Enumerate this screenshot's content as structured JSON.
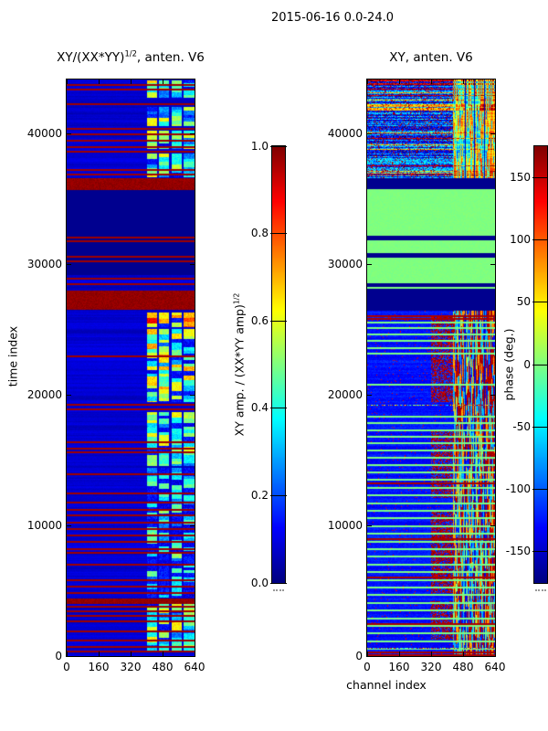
{
  "figure": {
    "title": "2015-06-16 0.0-24.0"
  },
  "colors": {
    "background": "#ffffff",
    "frame": "#000000",
    "text": "#000000",
    "flag_red": "#800000",
    "deep_blue": "#000080",
    "zero_phase_green": "#80ff80"
  },
  "chart_data": [
    {
      "type": "heatmap",
      "title_prefix": "XY/(XX*YY)",
      "title_sup": "1/2",
      "title_suffix": ", anten. V6",
      "xlabel": "",
      "ylabel": "time index",
      "xlim": [
        0,
        640
      ],
      "ylim": [
        0,
        44200
      ],
      "x_tick_labels": [
        "0",
        "160",
        "320",
        "480",
        "640"
      ],
      "y_tick_labels": [
        "0",
        "10000",
        "20000",
        "30000",
        "40000"
      ],
      "colormap": "jet",
      "colorbar": {
        "label_prefix": "XY amp. / (XX*YY amp)",
        "label_sup": "1/2",
        "tick_labels": [
          "0.0",
          "0.2",
          "0.4",
          "0.6",
          "0.8",
          "1.0"
        ],
        "vmin": 0,
        "vmax": 1
      },
      "features": {
        "background_level": 0.07,
        "quiet_navy_bands_time": [
          [
            29300,
            35800
          ]
        ],
        "flagged_red_bands_time": [
          [
            35800,
            36600
          ],
          [
            26600,
            28050
          ],
          [
            4050,
            4420
          ]
        ],
        "flagged_red_rows_time": [
          43850,
          43500,
          42350,
          40500,
          40050,
          39550,
          39100,
          38750,
          37350,
          37000,
          32150,
          31850,
          30700,
          30350,
          29000,
          28600,
          23050,
          19350,
          19000,
          16450,
          15950,
          15700,
          14000,
          12550,
          11850,
          11300,
          10850,
          10300,
          9800,
          9300,
          8800,
          8250,
          8000,
          7100,
          5900,
          5400,
          4900,
          3850,
          3500,
          3150,
          2750,
          1950,
          1250,
          770,
          420
        ],
        "bright_channel_groups": [
          [
            400,
            452
          ],
          [
            462,
            514
          ],
          [
            524,
            576
          ],
          [
            586,
            638
          ]
        ],
        "bright_regions_time": [
          {
            "t0": 42800,
            "t1": 44150,
            "level": 0.85
          },
          {
            "t0": 40600,
            "t1": 42100,
            "level": 0.85
          },
          {
            "t0": 38900,
            "t1": 40300,
            "level": 0.75
          },
          {
            "t0": 36700,
            "t1": 38500,
            "level": 0.8
          },
          {
            "t0": 25200,
            "t1": 26350,
            "level": 1.0,
            "hot": true
          },
          {
            "t0": 19500,
            "t1": 25100,
            "level": 0.95
          },
          {
            "t0": 14600,
            "t1": 18700,
            "level": 0.75
          },
          {
            "t0": 4500,
            "t1": 14400,
            "level": 0.55,
            "sparse": true
          },
          {
            "t0": 300,
            "t1": 4000,
            "level": 0.8
          }
        ]
      }
    },
    {
      "type": "heatmap",
      "title": "XY, anten. V6",
      "xlabel": "channel index",
      "ylabel": "",
      "xlim": [
        0,
        640
      ],
      "ylim": [
        0,
        44200
      ],
      "x_tick_labels": [
        "0",
        "160",
        "320",
        "480",
        "640"
      ],
      "y_tick_labels": [
        "0",
        "10000",
        "20000",
        "30000",
        "40000"
      ],
      "colormap": "jet",
      "colorbar": {
        "label": "phase (deg.)",
        "tick_labels": [
          "-150",
          "-100",
          "-50",
          "0",
          "50",
          "100",
          "150"
        ],
        "vmin": -175,
        "vmax": 175
      },
      "features": {
        "noisy_band_time": [
          36650,
          44200
        ],
        "navy_bands_time": [
          [
            35800,
            36650
          ],
          [
            26450,
            28150
          ]
        ],
        "green_zero_phase_band_time": [
          28150,
          35800
        ],
        "green_band_navy_lines_time": [
          [
            31950,
            32250
          ],
          [
            30600,
            30900
          ],
          [
            28400,
            28600
          ]
        ],
        "green_rows_time": [
          25640,
          25220,
          24730,
          24240,
          23680,
          23260,
          20880,
          18420,
          17930,
          17370,
          16880,
          16390,
          15830,
          15270,
          14710,
          14150,
          13590,
          12960,
          12400,
          11770,
          11210,
          10650,
          10020,
          9460,
          8830,
          8270,
          7710,
          7080,
          6520,
          5890,
          5330,
          4760,
          4130,
          3570,
          2940,
          2380,
          1820,
          1190,
          630
        ],
        "red_rows_time": [
          26150,
          25900,
          13300,
          9050,
          6100,
          2550,
          350,
          150
        ],
        "speckle_rows_time": [
          19250,
          650
        ],
        "red_patch_bands_time": [
          [
            19500,
            26100
          ],
          [
            12100,
            17350
          ],
          [
            4800,
            11200
          ],
          [
            1250,
            4200
          ]
        ],
        "red_patch_channels": [
          320,
          430
        ],
        "streak_channels": [
          430,
          640
        ],
        "streak_separator_channels": [
          490,
          537,
          584
        ]
      }
    }
  ]
}
